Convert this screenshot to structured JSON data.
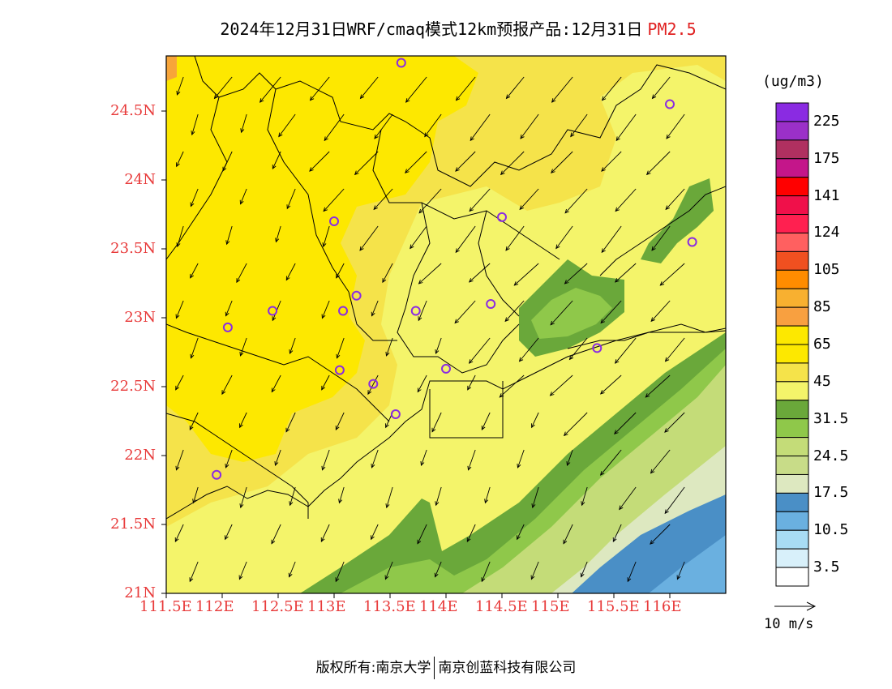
{
  "title": {
    "main": "2024年12月31日WRF/cmaq模式12km预报产品:12月31日",
    "pollutant": "PM2.5"
  },
  "map": {
    "lon_range": [
      111.5,
      116.5
    ],
    "lat_range": [
      21.0,
      24.9
    ],
    "lat_labels": [
      "24.5N",
      "24N",
      "23.5N",
      "23N",
      "22.5N",
      "22N",
      "21.5N",
      "21N"
    ],
    "lat_values": [
      24.5,
      24.0,
      23.5,
      23.0,
      22.5,
      22.0,
      21.5,
      21.0
    ],
    "lon_labels": [
      "111.5E",
      "112E",
      "112.5E",
      "113E",
      "113.5E",
      "114E",
      "114.5E",
      "115E",
      "115.5E",
      "116E"
    ],
    "lon_values": [
      111.5,
      112.0,
      112.5,
      113.0,
      113.5,
      114.0,
      114.5,
      115.0,
      115.5,
      116.0
    ],
    "stations": [
      [
        113.6,
        24.85
      ],
      [
        116.0,
        24.55
      ],
      [
        113.0,
        23.7
      ],
      [
        114.5,
        23.73
      ],
      [
        116.2,
        23.55
      ],
      [
        112.45,
        23.05
      ],
      [
        112.05,
        22.93
      ],
      [
        113.08,
        23.05
      ],
      [
        113.2,
        23.16
      ],
      [
        113.73,
        23.05
      ],
      [
        114.4,
        23.1
      ],
      [
        115.35,
        22.78
      ],
      [
        113.05,
        22.62
      ],
      [
        113.35,
        22.52
      ],
      [
        114.0,
        22.63
      ],
      [
        113.55,
        22.3
      ],
      [
        111.95,
        21.86
      ]
    ],
    "colors": {
      "zone_45_65": "#f5e34a",
      "zone_65_85": "#fde800",
      "zone_85_105": "#f7a53a",
      "zone_31_45": "#f4f46a",
      "zone_24_31": "#8fc84a",
      "zone_31": "#6aa83a",
      "zone_17_24": "#c4dc78",
      "zone_10_17": "#dde8c0",
      "zone_3_10": "#4a8fc6",
      "zone_0_3": "#6ab0e0",
      "station": "#8a2be2",
      "axis_label": "#e83a3a"
    }
  },
  "legend": {
    "unit": "(ug/m3)",
    "labels": [
      "225",
      "175",
      "141",
      "124",
      "105",
      "85",
      "65",
      "45",
      "31.5",
      "24.5",
      "17.5",
      "10.5",
      "3.5"
    ],
    "colors": [
      "#8a2be2",
      "#9b30c8",
      "#b03060",
      "#c4168a",
      "#ff0000",
      "#f0104a",
      "#ff2050",
      "#ff6060",
      "#f05020",
      "#ff8c00",
      "#f8b030",
      "#f8a040",
      "#fde800",
      "#fde800",
      "#f5e34a",
      "#f4f46a",
      "#6aa83a",
      "#8fc84a",
      "#c4dc78",
      "#c8dc88",
      "#dde8c0",
      "#4a8fc6",
      "#6ab0e0",
      "#a8dcf4",
      "#d8f0fa",
      "#ffffff"
    ]
  },
  "wind_key": {
    "label": "10 m/s"
  },
  "footer": {
    "left": "版权所有:南京大学",
    "right": "南京创蓝科技有限公司"
  }
}
